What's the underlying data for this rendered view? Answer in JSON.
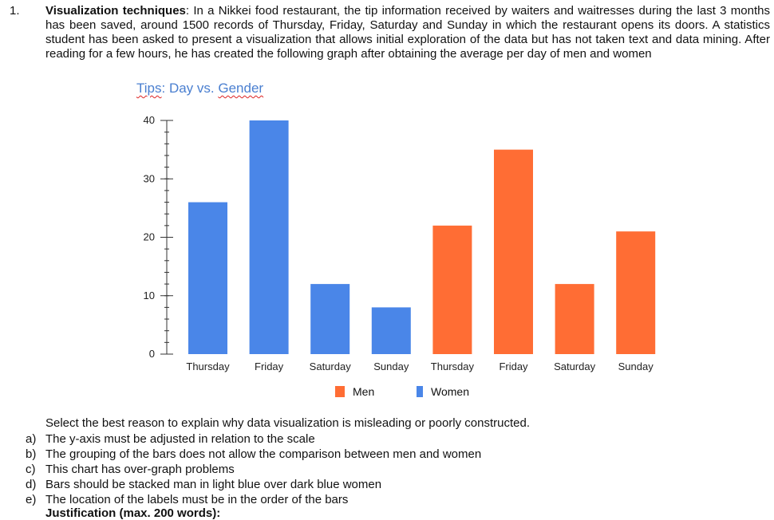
{
  "question": {
    "number": "1.",
    "heading": "Visualization techniques",
    "text": ": In a Nikkei food restaurant, the tip information received by waiters and waitresses during the last 3 months has been saved, around 1500 records of Thursday, Friday, Saturday and Sunday in which the restaurant opens its doors. A statistics student has been asked to present a visualization that allows initial exploration of the data but has not taken text and data mining. After reading for a few hours, he has created the following graph after obtaining the average per day of men and women",
    "prompt": "Select the best reason to explain why data visualization is misleading or poorly constructed.",
    "options": [
      {
        "letter": "a)",
        "text": "The y-axis must be adjusted in relation to the scale"
      },
      {
        "letter": "b)",
        "text": "The grouping of the bars does not allow the comparison between men and women"
      },
      {
        "letter": "c)",
        "text": "This chart has over-graph problems"
      },
      {
        "letter": "d)",
        "text": "Bars should be stacked man in light blue over dark blue women"
      },
      {
        "letter": "e)",
        "text": "The location of the labels must be in the order of the bars"
      }
    ],
    "justification": "Justification (max. 200 words):"
  },
  "chart_data": {
    "type": "bar",
    "title_part1": "Tips",
    "title_part2": ": Day vs. ",
    "title_part3": "Gender",
    "categories": [
      "Thursday",
      "Friday",
      "Saturday",
      "Sunday",
      "Thursday",
      "Friday",
      "Saturday",
      "Sunday"
    ],
    "values": [
      26,
      40,
      12,
      8,
      22,
      35,
      12,
      21
    ],
    "bar_colors": [
      "#4a86e8",
      "#4a86e8",
      "#4a86e8",
      "#4a86e8",
      "#ff6d34",
      "#ff6d34",
      "#ff6d34",
      "#ff6d34"
    ],
    "yticks": [
      0,
      10,
      20,
      30,
      40
    ],
    "ylim": [
      0,
      40
    ],
    "legend": [
      {
        "label": "Men",
        "color": "#ff6d34"
      },
      {
        "label": "Women",
        "color": "#4a86e8"
      }
    ],
    "legend_position": "bottom"
  }
}
